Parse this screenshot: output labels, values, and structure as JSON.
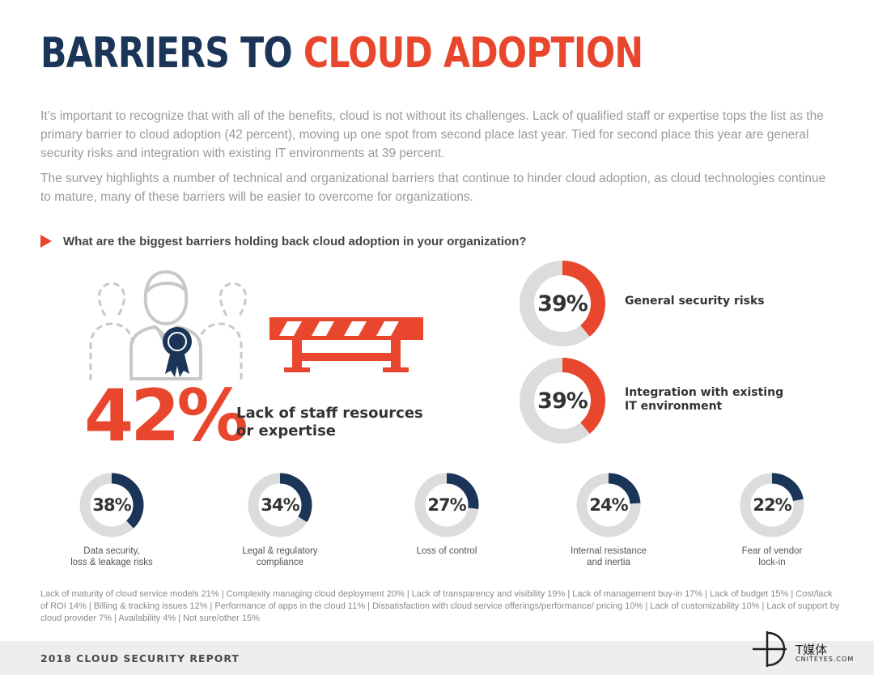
{
  "header": {
    "title_part1": "BARRIERS TO ",
    "title_part2": "CLOUD ADOPTION"
  },
  "intro": {
    "paragraph1": "It’s important to recognize that with all of the benefits, cloud is not without its challenges. Lack of qualified staff or expertise tops the list as the primary barrier to cloud adoption (42 percent), moving up one spot from second place last year. Tied for second place this year are general security risks and integration with existing IT environments at 39 percent.",
    "paragraph2": "The survey highlights a number of technical and organizational barriers that continue to hinder cloud adoption, as cloud technologies continue to mature, many of these barriers will be easier to overcome for organizations."
  },
  "question": "What are the biggest barriers holding back cloud adoption in your organization?",
  "colors": {
    "navy": "#1b3558",
    "orange": "#e8472d",
    "ring_gray": "#dcdcdc"
  },
  "chart_data": {
    "type": "donut",
    "highlights": [
      {
        "label": "Lack of staff resources or expertise",
        "label_lines": [
          "Lack of staff resources",
          "or expertise"
        ],
        "value": 42,
        "display": "42%"
      },
      {
        "label": "General security risks",
        "label_lines": [
          "General security risks"
        ],
        "value": 39,
        "display": "39%"
      },
      {
        "label": "Integration with existing IT environment",
        "label_lines": [
          "Integration with existing",
          "IT environment"
        ],
        "value": 39,
        "display": "39%"
      }
    ],
    "secondary": [
      {
        "label": "Data security, loss & leakage risks",
        "label_lines": [
          "Data security,",
          "loss & leakage risks"
        ],
        "value": 38,
        "display": "38%"
      },
      {
        "label": "Legal & regulatory compliance",
        "label_lines": [
          "Legal & regulatory",
          "compliance"
        ],
        "value": 34,
        "display": "34%"
      },
      {
        "label": "Loss of control",
        "label_lines": [
          "Loss of control"
        ],
        "value": 27,
        "display": "27%"
      },
      {
        "label": "Internal resistance and inertia",
        "label_lines": [
          "Internal resistance",
          "and inertia"
        ],
        "value": 24,
        "display": "24%"
      },
      {
        "label": "Fear of vendor lock-in",
        "label_lines": [
          "Fear of vendor",
          "lock-in"
        ],
        "value": 22,
        "display": "22%"
      }
    ],
    "others_text": "Lack of maturity of cloud service models 21%  |  Complexity managing cloud deployment 20%  |  Lack of transparency and visibility 19%  |  Lack of management buy-in 17%  |  Lack of budget  15%  |  Cost/lack of ROI 14%  |  Billing & tracking issues 12%  |  Performance of apps in the cloud 11%  |  Dissatisfaction with cloud service offerings/performance/ pricing 10%  |  Lack of customizability 10%  |  Lack of support by cloud provider 7%  |  Availability 4%  |  Not sure/other 15%"
  },
  "footer": {
    "report": "2018 CLOUD SECURITY REPORT"
  },
  "watermark": {
    "main": "T媒体",
    "sub": "CNITEYES.COM"
  }
}
